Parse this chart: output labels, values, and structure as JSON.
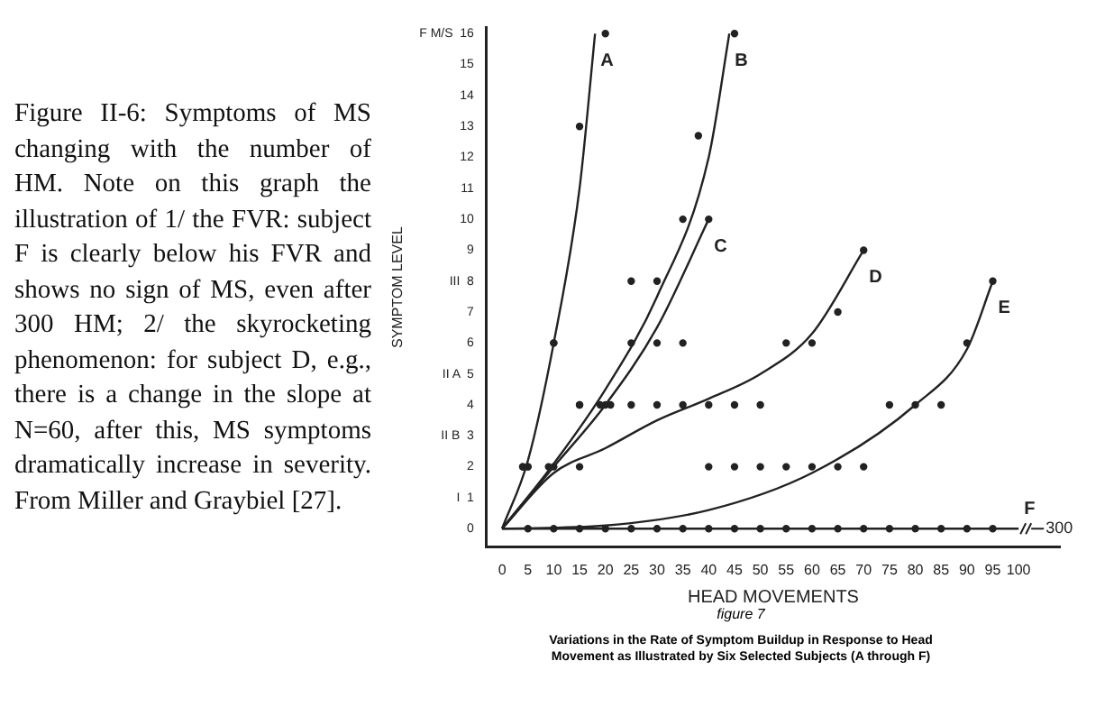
{
  "chart_data": {
    "type": "scatter",
    "subtitle": "figure 7",
    "xlabel": "HEAD MOVEMENTS",
    "ylabel": "SYMPTOM LEVEL",
    "annotations": [
      "Figure II-6: Symptoms of MS changing with the number of HM. Note on this graph the illustration of 1/ the FVR: subject F is clearly below his FVR and shows no sign of MS, even after 300 HM; 2/ the skyrocketing phenomenon: for subject D, e.g., there is a change in the slope at N=60, after this, MS symptoms dramatically increase in severity. From Miller and Graybiel [27].",
      {
        "text": "300",
        "x": 100,
        "y": 0
      },
      "Variations in the Rate of Symptom Buildup in Response to Head Movement as Illustrated by Six Selected Subjects (A through F)"
    ],
    "xlim": [
      -3,
      108
    ],
    "ylim": [
      -0.6,
      16.2
    ],
    "xticks": [
      0,
      5,
      10,
      15,
      20,
      25,
      30,
      35,
      40,
      45,
      50,
      55,
      60,
      65,
      70,
      75,
      80,
      85,
      90,
      95,
      100
    ],
    "yticks": [
      0,
      {
        "value": 1,
        "label": "I  1"
      },
      2,
      {
        "value": 3,
        "label": "II B  3"
      },
      4,
      {
        "value": 5,
        "label": "II A  5"
      },
      6,
      7,
      {
        "value": 8,
        "label": "III  8"
      },
      9,
      10,
      11,
      12,
      13,
      14,
      15,
      {
        "value": 16,
        "label": "F M/S  16"
      }
    ],
    "grid": false,
    "legend": false,
    "marker": "circle",
    "series": [
      {
        "name": "A",
        "type": "line",
        "marker": "none",
        "color": "#222222",
        "x": [
          0,
          5,
          10,
          15,
          18
        ],
        "values": [
          0,
          2.2,
          6,
          11,
          16
        ]
      },
      {
        "name": "B",
        "type": "line",
        "marker": "none",
        "color": "#222222",
        "x": [
          0,
          10,
          20,
          30,
          40,
          44
        ],
        "values": [
          0,
          2.1,
          4.5,
          7.5,
          12,
          16
        ]
      },
      {
        "name": "C",
        "type": "line",
        "marker": "none",
        "color": "#222222",
        "x": [
          0,
          10,
          20,
          30,
          40
        ],
        "values": [
          0,
          2,
          4,
          6.5,
          10
        ]
      },
      {
        "name": "D",
        "type": "line",
        "marker": "none",
        "color": "#222222",
        "x": [
          0,
          10,
          20,
          30,
          40,
          50,
          60,
          70
        ],
        "values": [
          0,
          1.8,
          2.6,
          3.5,
          4.2,
          5,
          6.3,
          9
        ]
      },
      {
        "name": "E",
        "type": "line",
        "marker": "none",
        "color": "#222222",
        "x": [
          0,
          20,
          40,
          60,
          80,
          90,
          95
        ],
        "values": [
          0,
          0.1,
          0.6,
          1.8,
          4,
          5.8,
          8
        ]
      },
      {
        "name": "F",
        "type": "line",
        "marker": "none",
        "color": "#222222",
        "x": [
          0,
          100
        ],
        "values": [
          0,
          0
        ]
      },
      {
        "type": "scatter",
        "color": "#222222",
        "x": [
          4,
          5,
          10,
          15,
          20,
          4,
          5,
          9,
          10,
          15,
          40,
          45,
          50,
          55,
          60,
          65,
          70,
          15,
          19,
          20,
          21,
          25,
          30,
          35,
          40,
          45,
          50,
          75,
          80,
          85,
          25,
          30,
          35,
          55,
          60,
          90,
          10,
          25,
          30,
          35,
          40,
          38,
          65,
          70,
          95,
          15,
          45,
          5,
          10,
          15,
          20,
          25,
          30,
          35,
          40,
          45,
          50,
          55,
          60,
          65,
          70,
          75,
          80,
          85,
          90,
          95
        ],
        "values": [
          2,
          2,
          6,
          13,
          16,
          2,
          2,
          2,
          2,
          2,
          2,
          2,
          2,
          2,
          2,
          2,
          2,
          4,
          4,
          4,
          4,
          4,
          4,
          4,
          4,
          4,
          4,
          4,
          4,
          4,
          6,
          6,
          6,
          6,
          6,
          6,
          6,
          8,
          8,
          10,
          10,
          12.7,
          7,
          9,
          8,
          4,
          16,
          0,
          0,
          0,
          0,
          0,
          0,
          0,
          0,
          0,
          0,
          0,
          0,
          0,
          0,
          0,
          0,
          0,
          0,
          0
        ]
      }
    ]
  }
}
